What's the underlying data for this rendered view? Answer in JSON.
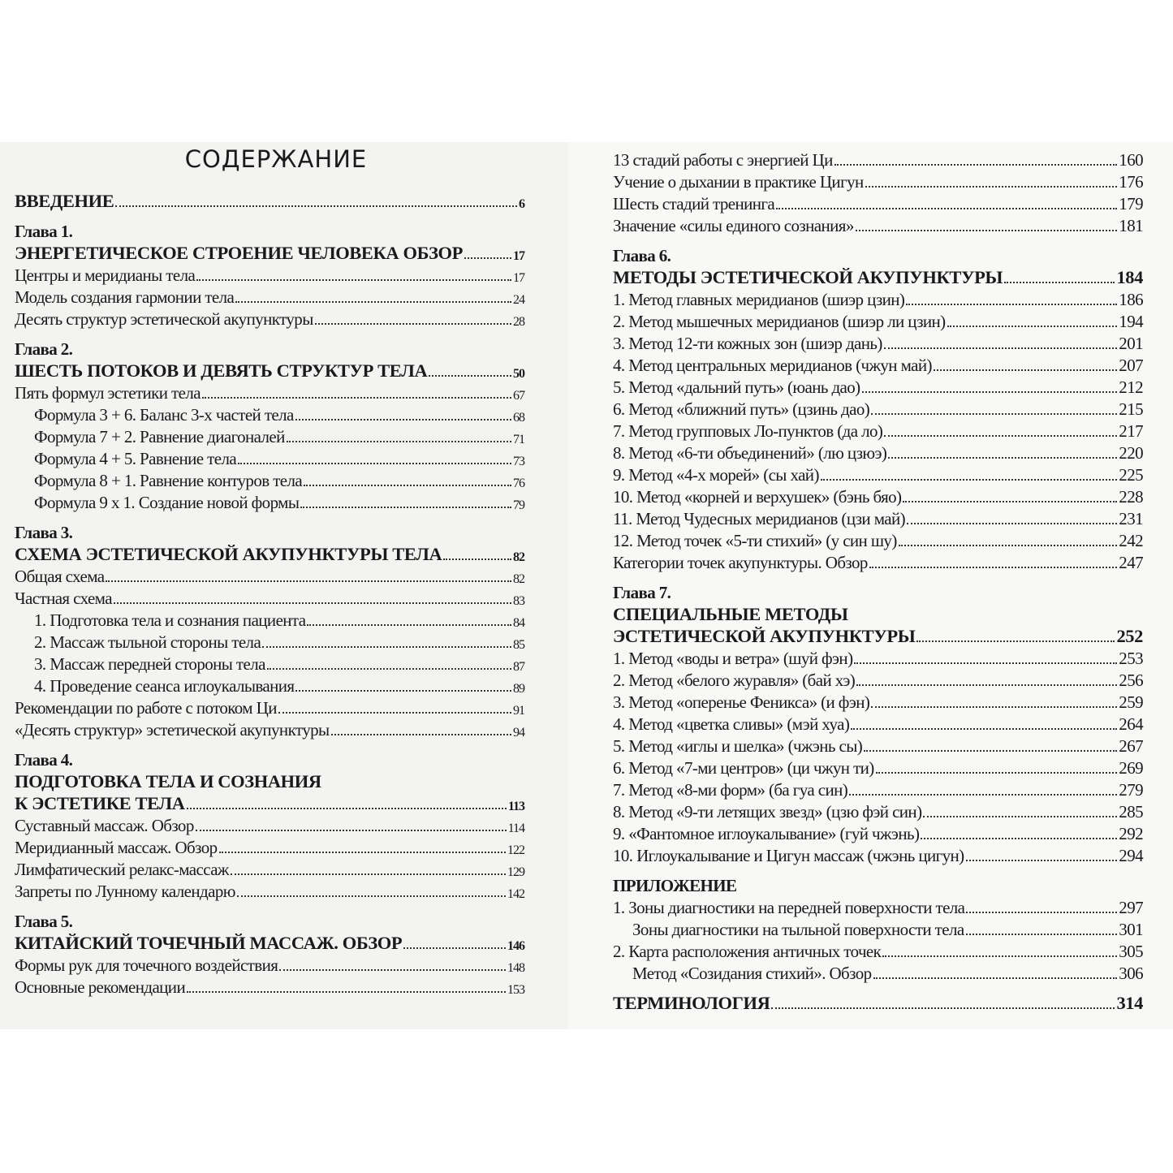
{
  "title": "СОДЕРЖАНИЕ",
  "left": [
    {
      "type": "intro",
      "text": "ВВЕДЕНИЕ",
      "page": "6"
    },
    {
      "type": "chapter",
      "text": "Глава 1."
    },
    {
      "type": "heading",
      "text": "ЭНЕРГЕТИЧЕСКОЕ СТРОЕНИЕ ЧЕЛОВЕКА ОБЗОР",
      "page": "17"
    },
    {
      "type": "item",
      "text": "Центры и меридианы тела",
      "page": "17"
    },
    {
      "type": "item",
      "text": "Модель создания гармонии тела",
      "page": "24"
    },
    {
      "type": "item",
      "text": "Десять структур эстетической акупунктуры",
      "page": "28"
    },
    {
      "type": "chapter",
      "text": "Глава 2."
    },
    {
      "type": "heading",
      "text": "ШЕСТЬ ПОТОКОВ И ДЕВЯТЬ СТРУКТУР ТЕЛА",
      "page": "50"
    },
    {
      "type": "item",
      "text": "Пять формул эстетики тела",
      "page": "67"
    },
    {
      "type": "sub",
      "text": "Формула 3 + 6. Баланс 3-х частей тела",
      "page": "68"
    },
    {
      "type": "sub",
      "text": "Формула 7 + 2. Равнение диагоналей",
      "page": "71"
    },
    {
      "type": "sub",
      "text": "Формула 4 + 5. Равнение тела",
      "page": "73"
    },
    {
      "type": "sub",
      "text": "Формула 8 + 1. Равнение контуров тела",
      "page": "76"
    },
    {
      "type": "sub",
      "text": "Формула 9 x 1. Создание новой формы",
      "page": "79"
    },
    {
      "type": "chapter",
      "text": "Глава 3."
    },
    {
      "type": "heading",
      "text": "СХЕМА ЭСТЕТИЧЕСКОЙ АКУПУНКТУРЫ ТЕЛА",
      "page": "82"
    },
    {
      "type": "item",
      "text": "Общая схема",
      "page": "82"
    },
    {
      "type": "item",
      "text": "Частная схема",
      "page": "83"
    },
    {
      "type": "sub",
      "text": "1. Подготовка тела и сознания пациента",
      "page": "84"
    },
    {
      "type": "sub",
      "text": "2. Массаж тыльной стороны тела",
      "page": "85"
    },
    {
      "type": "sub",
      "text": "3. Массаж передней стороны тела",
      "page": "87"
    },
    {
      "type": "sub",
      "text": "4. Проведение сеанса иглоукалывания",
      "page": "89"
    },
    {
      "type": "item",
      "text": "Рекомендации по работе с потоком Ци",
      "page": "91"
    },
    {
      "type": "item",
      "text": "«Десять структур» эстетической акупунктуры",
      "page": "94"
    },
    {
      "type": "chapter",
      "text": "Глава 4."
    },
    {
      "type": "heading",
      "text": "ПОДГОТОВКА ТЕЛА И СОЗНАНИЯ"
    },
    {
      "type": "heading",
      "text": "К ЭСТЕТИКЕ ТЕЛА",
      "page": "113"
    },
    {
      "type": "item",
      "text": "Суставный массаж. Обзор",
      "page": "114"
    },
    {
      "type": "item",
      "text": "Меридианный массаж. Обзор",
      "page": "122"
    },
    {
      "type": "item",
      "text": "Лимфатический релакс-массаж",
      "page": "129"
    },
    {
      "type": "item",
      "text": "Запреты по Лунному календарю",
      "page": "142"
    },
    {
      "type": "chapter",
      "text": "Глава 5."
    },
    {
      "type": "heading",
      "text": "КИТАЙСКИЙ ТОЧЕЧНЫЙ МАССАЖ. ОБЗОР",
      "page": "146"
    },
    {
      "type": "item",
      "text": "Формы рук для точечного воздействия",
      "page": "148"
    },
    {
      "type": "item",
      "text": "Основные рекомендации",
      "page": "153"
    }
  ],
  "right": [
    {
      "type": "item",
      "text": "13 стадий работы с энергией Ци",
      "page": "160"
    },
    {
      "type": "item",
      "text": "Учение о дыхании в практике Цигун",
      "page": "176"
    },
    {
      "type": "item",
      "text": "Шесть стадий тренинга",
      "page": "179"
    },
    {
      "type": "item",
      "text": "Значение «силы единого сознания»",
      "page": "181"
    },
    {
      "type": "chapter",
      "text": "Глава 6."
    },
    {
      "type": "heading",
      "text": "МЕТОДЫ ЭСТЕТИЧЕСКОЙ АКУПУНКТУРЫ",
      "page": "184"
    },
    {
      "type": "item",
      "text": "1. Метод главных меридианов (шиэр цзин)",
      "page": "186"
    },
    {
      "type": "item",
      "text": "2. Метод мышечных меридианов (шиэр ли цзин)",
      "page": "194"
    },
    {
      "type": "item",
      "text": "3. Метод 12-ти кожных зон (шиэр дань)",
      "page": "201"
    },
    {
      "type": "item",
      "text": "4. Метод центральных меридианов (чжун май)",
      "page": "207"
    },
    {
      "type": "item",
      "text": "5. Метод «дальний путь» (юань дао)",
      "page": "212"
    },
    {
      "type": "item",
      "text": "6. Метод «ближний путь» (цзинь дао)",
      "page": "215"
    },
    {
      "type": "item",
      "text": "7. Метод групповых Ло-пунктов (да ло)",
      "page": "217"
    },
    {
      "type": "item",
      "text": "8. Метод «6-ти объединений» (лю цзюэ)",
      "page": "220"
    },
    {
      "type": "item",
      "text": "9. Метод «4-х морей» (сы хай)",
      "page": "225"
    },
    {
      "type": "item",
      "text": "10. Метод «корней и верхушек» (бэнь бяо)",
      "page": "228"
    },
    {
      "type": "item",
      "text": "11. Метод Чудесных меридианов (цзи май)",
      "page": "231"
    },
    {
      "type": "item",
      "text": "12. Метод точек «5-ти стихий» (у син шу)",
      "page": "242"
    },
    {
      "type": "item",
      "text": "Категории точек акупунктуры. Обзор",
      "page": "247"
    },
    {
      "type": "chapter",
      "text": "Глава 7."
    },
    {
      "type": "heading",
      "text": "СПЕЦИАЛЬНЫЕ МЕТОДЫ"
    },
    {
      "type": "heading",
      "text": "ЭСТЕТИЧЕСКОЙ АКУПУНКТУРЫ",
      "page": "252"
    },
    {
      "type": "item",
      "text": "1. Метод «воды и ветра» (шуй фэн)",
      "page": "253"
    },
    {
      "type": "item",
      "text": "2. Метод «белого журавля» (бай хэ)",
      "page": "256"
    },
    {
      "type": "item",
      "text": "3. Метод «оперенье Феникса» (и фэн)",
      "page": "259"
    },
    {
      "type": "item",
      "text": "4. Метод «цветка сливы» (мэй хуа)",
      "page": "264"
    },
    {
      "type": "item",
      "text": "5. Метод «иглы и шелка» (чжэнь сы)",
      "page": "267"
    },
    {
      "type": "item",
      "text": "6. Метод «7-ми центров» (ци чжун ти)",
      "page": "269"
    },
    {
      "type": "item",
      "text": "7. Метод «8-ми форм» (ба гуа син)",
      "page": "279"
    },
    {
      "type": "item",
      "text": "8. Метод «9-ти летящих звезд» (цзю фэй син)",
      "page": "285"
    },
    {
      "type": "item",
      "text": "9. «Фантомное иглоукалывание» (гуй чжэнь)",
      "page": "292"
    },
    {
      "type": "item",
      "text": "10. Иглоукалывание и Цигун массаж (чжэнь цигун)",
      "page": "294"
    },
    {
      "type": "chapter",
      "text": "ПРИЛОЖЕНИЕ"
    },
    {
      "type": "item",
      "text": "1. Зоны диагностики на передней поверхности тела",
      "page": "297"
    },
    {
      "type": "sub",
      "text": "Зоны диагностики на тыльной поверхности тела",
      "page": "301"
    },
    {
      "type": "item",
      "text": "2. Карта расположения античных точек",
      "page": "305"
    },
    {
      "type": "sub",
      "text": "Метод «Созидания стихий». Обзор",
      "page": "306"
    },
    {
      "type": "chapter-end",
      "text": "ТЕРМИНОЛОГИЯ",
      "page": "314"
    }
  ]
}
